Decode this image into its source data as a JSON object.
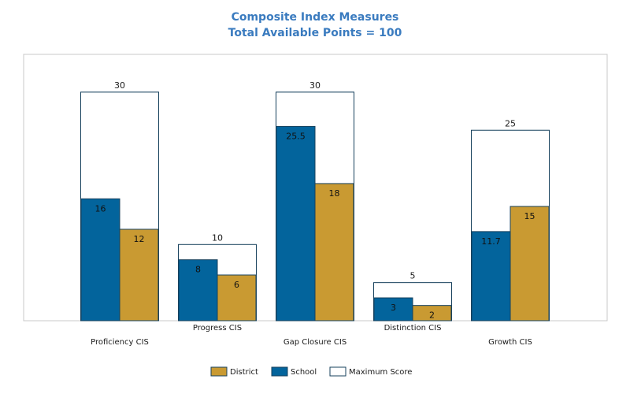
{
  "chart_data": {
    "type": "bar",
    "title": "Composite Index Measures",
    "subtitle": "Total Available Points = 100",
    "categories": [
      "Proficiency CIS",
      "Progress CIS",
      "Gap Closure CIS",
      "Distinction CIS",
      "Growth CIS"
    ],
    "series": [
      {
        "name": "Maximum Score",
        "values": [
          30,
          10,
          30,
          5,
          25
        ],
        "color": "#ffffff"
      },
      {
        "name": "School",
        "values": [
          16,
          8,
          25.5,
          3,
          11.7
        ],
        "color": "#03649c"
      },
      {
        "name": "District",
        "values": [
          12,
          6,
          18,
          2,
          15
        ],
        "color": "#c99a32"
      }
    ],
    "value_labels": {
      "max": [
        "30",
        "10",
        "30",
        "5",
        "25"
      ],
      "school": [
        "16",
        "8",
        "25.5",
        "3",
        "11.7"
      ],
      "district": [
        "12",
        "6",
        "18",
        "2",
        "15"
      ]
    },
    "ylim": [
      0,
      30
    ],
    "grid": false,
    "legend": {
      "position": "bottom",
      "items": [
        {
          "label": "District",
          "color": "#c99a32"
        },
        {
          "label": "School",
          "color": "#03649c"
        },
        {
          "label": "Maximum Score",
          "color": "#ffffff"
        }
      ]
    },
    "colors": {
      "title": "#3a7bbf",
      "border": "#17415d",
      "plot_border": "#c8c8c8"
    }
  }
}
